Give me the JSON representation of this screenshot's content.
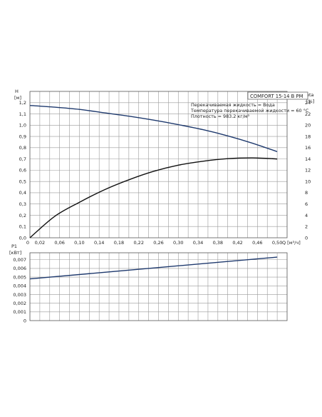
{
  "chart_data": [
    {
      "type": "line",
      "model_label": "COMFORT 15-14 B PM",
      "annotations": [
        "Перекачиваемая жидкость = Вода",
        "Температура перекачиваемой жидкости = 60 °C",
        "Плотность = 983.2 кг/м³"
      ],
      "ylabel_left": [
        "H",
        "[м]"
      ],
      "ylabel_right": [
        "eta",
        "[%]"
      ],
      "xlabel": "Q [м³/ч]",
      "x_ticks": [
        "0",
        "0,02",
        "0,06",
        "0,10",
        "0,14",
        "0,18",
        "0,22",
        "0,26",
        "0,30",
        "0,34",
        "0,38",
        "0,42",
        "0,46",
        "0,50"
      ],
      "y_left_ticks": [
        "0,0",
        "0,1",
        "0,2",
        "0,3",
        "0,4",
        "0,5",
        "0,6",
        "0,7",
        "0,8",
        "0,9",
        "1,0",
        "1,1",
        "1,2"
      ],
      "y_right_ticks": [
        "0",
        "2",
        "4",
        "6",
        "8",
        "10",
        "12",
        "14",
        "16",
        "18",
        "20",
        "22",
        "24"
      ],
      "xlim": [
        0,
        0.52
      ],
      "ylim_left": [
        0,
        1.3
      ],
      "ylim_right": [
        0,
        26
      ],
      "grid": true,
      "series": [
        {
          "axis": "left",
          "color": "#1f3a6e",
          "x": [
            0,
            0.05,
            0.1,
            0.15,
            0.2,
            0.25,
            0.3,
            0.35,
            0.4,
            0.45,
            0.5
          ],
          "y": [
            1.175,
            1.16,
            1.14,
            1.11,
            1.08,
            1.045,
            1.005,
            0.96,
            0.905,
            0.84,
            0.765
          ]
        },
        {
          "axis": "right",
          "color": "#111111",
          "x": [
            0,
            0.05,
            0.1,
            0.15,
            0.2,
            0.25,
            0.3,
            0.35,
            0.4,
            0.45,
            0.5
          ],
          "y": [
            0,
            3.8,
            6.3,
            8.5,
            10.3,
            11.8,
            12.9,
            13.6,
            14.05,
            14.2,
            14.0
          ]
        }
      ]
    },
    {
      "type": "line",
      "ylabel": [
        "P1",
        "[кВт]"
      ],
      "y_ticks": [
        "0",
        "0,001",
        "0,002",
        "0,003",
        "0,004",
        "0,005",
        "0,006",
        "0,007"
      ],
      "xlim": [
        0,
        0.52
      ],
      "ylim": [
        0,
        0.0078
      ],
      "grid": true,
      "series": [
        {
          "color": "#1f3a6e",
          "x": [
            0,
            0.5
          ],
          "y": [
            0.0048,
            0.0073
          ]
        }
      ]
    }
  ]
}
